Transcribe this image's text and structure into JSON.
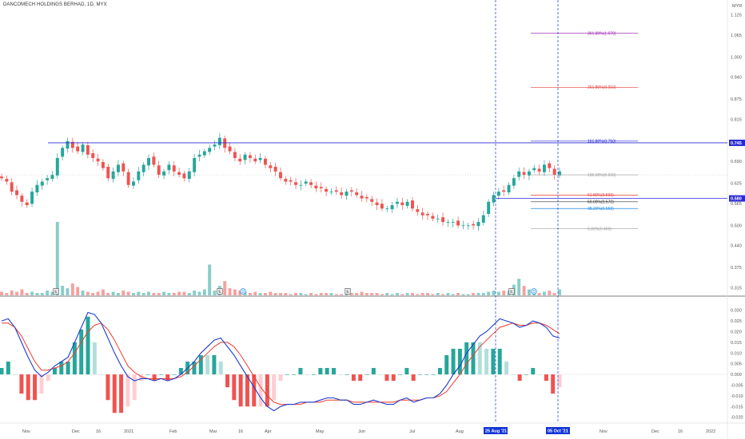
{
  "title": "DANCOMECH HOLDINGS BERHAD, 1D, MYX",
  "colors": {
    "up": "#26a69a",
    "down": "#ef5350",
    "macd": "#1e3ccc",
    "signal": "#ef3b2c",
    "hline": "#2b2bd4",
    "flag": "#1234d8"
  },
  "chart_data": [
    {
      "type": "candlestick",
      "currency": "MYR",
      "ylim": [
        0.29,
        1.15
      ],
      "price_ticks": [
        "1.125",
        "1.065",
        "1.000",
        "0.940",
        "0.875",
        "0.815",
        "0.750",
        "0.690",
        "0.625",
        "0.565",
        "0.500",
        "0.440",
        "0.375",
        "0.315"
      ],
      "time_ticks": [
        "Nov",
        "Dec",
        "16",
        "2021",
        "Feb",
        "Mar",
        "16",
        "Apr",
        "May",
        "Jun",
        "Jul",
        "Aug",
        "Sep",
        "Nov",
        "Dec",
        "16",
        "2022"
      ],
      "series_close": [
        0.64,
        0.63,
        0.6,
        0.59,
        0.57,
        0.56,
        0.6,
        0.62,
        0.63,
        0.64,
        0.65,
        0.7,
        0.73,
        0.75,
        0.73,
        0.72,
        0.74,
        0.71,
        0.7,
        0.69,
        0.67,
        0.64,
        0.66,
        0.68,
        0.66,
        0.62,
        0.63,
        0.66,
        0.68,
        0.7,
        0.68,
        0.65,
        0.66,
        0.68,
        0.66,
        0.65,
        0.64,
        0.66,
        0.7,
        0.71,
        0.72,
        0.73,
        0.74,
        0.76,
        0.73,
        0.72,
        0.7,
        0.69,
        0.71,
        0.7,
        0.69,
        0.7,
        0.68,
        0.67,
        0.66,
        0.64,
        0.63,
        0.63,
        0.62,
        0.62,
        0.63,
        0.62,
        0.61,
        0.61,
        0.6,
        0.6,
        0.6,
        0.59,
        0.6,
        0.6,
        0.59,
        0.58,
        0.58,
        0.57,
        0.56,
        0.55,
        0.55,
        0.56,
        0.57,
        0.56,
        0.57,
        0.55,
        0.54,
        0.53,
        0.53,
        0.52,
        0.52,
        0.51,
        0.51,
        0.51,
        0.5,
        0.5,
        0.5,
        0.5,
        0.51,
        0.53,
        0.57,
        0.59,
        0.6,
        0.6,
        0.62,
        0.64,
        0.66,
        0.65,
        0.66,
        0.67,
        0.66,
        0.68,
        0.67,
        0.65,
        0.66
      ],
      "volume": [
        3,
        2,
        4,
        3,
        5,
        2,
        3,
        2,
        2,
        4,
        3,
        62,
        8,
        6,
        10,
        7,
        4,
        3,
        2,
        3,
        5,
        2,
        3,
        2,
        4,
        3,
        2,
        3,
        2,
        3,
        2,
        2,
        3,
        2,
        2,
        3,
        3,
        2,
        4,
        3,
        5,
        26,
        4,
        8,
        12,
        6,
        5,
        4,
        3,
        2,
        3,
        2,
        2,
        3,
        2,
        2,
        2,
        1,
        2,
        2,
        1,
        2,
        1,
        2,
        2,
        2,
        1,
        1,
        2,
        2,
        2,
        3,
        2,
        2,
        2,
        1,
        2,
        1,
        2,
        1,
        2,
        2,
        1,
        2,
        2,
        1,
        2,
        1,
        2,
        1,
        2,
        1,
        1,
        2,
        2,
        2,
        3,
        4,
        3,
        4,
        4,
        9,
        14,
        8,
        5,
        3,
        2,
        3,
        4,
        2,
        5
      ],
      "hlines": [
        0.745,
        0.58
      ],
      "price_labels": [
        "0.745",
        "0.580"
      ],
      "fib_levels": [
        {
          "label": "361.80%(1.070)",
          "value": 1.07,
          "color": "#9c27b0"
        },
        {
          "label": "261.80%(0.910)",
          "value": 0.91,
          "color": "#e53935"
        },
        {
          "label": "161.80%(0.750)",
          "value": 0.75,
          "color": "#2b2bd4"
        },
        {
          "label": "100.00%(0.650)",
          "value": 0.65,
          "color": "#9e9e9e"
        },
        {
          "label": "61.80%(0.590)",
          "value": 0.59,
          "color": "#e53935"
        },
        {
          "label": "50.00%(0.570)",
          "value": 0.57,
          "color": "#333333"
        },
        {
          "label": "38.20%(0.550)",
          "value": 0.55,
          "color": "#1e88e5"
        },
        {
          "label": "0.00%(0.490)",
          "value": 0.49,
          "color": "#9e9e9e"
        }
      ],
      "event_markers": [
        "E",
        "E",
        "D",
        "E",
        "E",
        "D"
      ]
    },
    {
      "type": "macd",
      "ylim": [
        -0.022,
        0.034
      ],
      "ticks": [
        "0.030",
        "0.025",
        "0.020",
        "0.015",
        "0.010",
        "0.005",
        "0.000",
        "-0.005",
        "-0.010",
        "-0.015",
        "-0.020"
      ],
      "macd": [
        0.025,
        0.026,
        0.022,
        0.015,
        0.008,
        0.002,
        -0.001,
        0.001,
        0.004,
        0.006,
        0.008,
        0.015,
        0.022,
        0.029,
        0.028,
        0.024,
        0.017,
        0.01,
        0.004,
        -0.001,
        -0.003,
        -0.002,
        -0.002,
        -0.003,
        -0.002,
        -0.003,
        -0.002,
        0.0,
        0.003,
        0.006,
        0.01,
        0.013,
        0.016,
        0.017,
        0.013,
        0.009,
        0.004,
        -0.001,
        -0.006,
        -0.011,
        -0.015,
        -0.017,
        -0.015,
        -0.014,
        -0.014,
        -0.013,
        -0.013,
        -0.013,
        -0.012,
        -0.011,
        -0.011,
        -0.012,
        -0.012,
        -0.014,
        -0.014,
        -0.013,
        -0.012,
        -0.013,
        -0.014,
        -0.014,
        -0.012,
        -0.011,
        -0.013,
        -0.012,
        -0.011,
        -0.011,
        -0.009,
        -0.005,
        0.0,
        0.004,
        0.01,
        0.014,
        0.018,
        0.02,
        0.023,
        0.026,
        0.025,
        0.024,
        0.022,
        0.023,
        0.025,
        0.024,
        0.022,
        0.018,
        0.017
      ],
      "signal": [
        0.024,
        0.024,
        0.022,
        0.018,
        0.012,
        0.006,
        0.002,
        0.002,
        0.003,
        0.004,
        0.006,
        0.01,
        0.015,
        0.02,
        0.023,
        0.024,
        0.021,
        0.016,
        0.01,
        0.004,
        0.001,
        -0.001,
        -0.002,
        -0.002,
        -0.002,
        -0.002,
        -0.002,
        -0.001,
        0.001,
        0.004,
        0.007,
        0.01,
        0.013,
        0.015,
        0.015,
        0.013,
        0.009,
        0.004,
        -0.001,
        -0.006,
        -0.01,
        -0.013,
        -0.014,
        -0.014,
        -0.014,
        -0.014,
        -0.013,
        -0.013,
        -0.013,
        -0.012,
        -0.012,
        -0.012,
        -0.012,
        -0.013,
        -0.013,
        -0.013,
        -0.013,
        -0.013,
        -0.013,
        -0.013,
        -0.012,
        -0.012,
        -0.012,
        -0.012,
        -0.011,
        -0.011,
        -0.01,
        -0.008,
        -0.004,
        0.0,
        0.005,
        0.009,
        0.013,
        0.016,
        0.019,
        0.022,
        0.023,
        0.024,
        0.023,
        0.023,
        0.024,
        0.024,
        0.023,
        0.021,
        0.019
      ]
    }
  ],
  "date_flags": [
    "25 Aug '21",
    "05 Oct '21"
  ]
}
